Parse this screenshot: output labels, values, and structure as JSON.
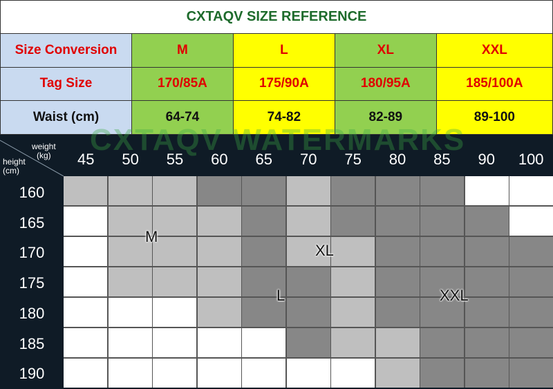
{
  "title": "CXTAQV SIZE REFERENCE",
  "conversion": {
    "headers": [
      "Size Conversion",
      "M",
      "L",
      "XL",
      "XXL"
    ],
    "rows": [
      {
        "label": "Tag Size",
        "values": [
          "170/85A",
          "175/90A",
          "180/95A",
          "185/100A"
        ]
      },
      {
        "label": "Waist (cm)",
        "values": [
          "64-74",
          "74-82",
          "82-89",
          "89-100"
        ]
      }
    ]
  },
  "watermark": "CXTAQV WATERMARKS",
  "chart": {
    "weight_label": "weight\n(kg)",
    "height_label": "height\n(cm)",
    "weights": [
      "45",
      "50",
      "55",
      "60",
      "65",
      "70",
      "75",
      "80",
      "85",
      "90",
      "100"
    ],
    "heights": [
      "160",
      "165",
      "170",
      "175",
      "180",
      "185",
      "190"
    ],
    "cells": [
      "LLLDDLDDDWW",
      "WLLLDLDDDDW",
      "WLLLDLLDDDD",
      "WLLLDDLDDDD",
      "WWWLDDLDDDD",
      "WWWWWDLLDDD",
      "WWWWWWWLDDD"
    ],
    "colors": {
      "W": "#ffffff",
      "L": "#bfbfbf",
      "D": "#878787"
    },
    "zone_labels": [
      "M",
      "XL",
      "L",
      "XXL"
    ]
  }
}
